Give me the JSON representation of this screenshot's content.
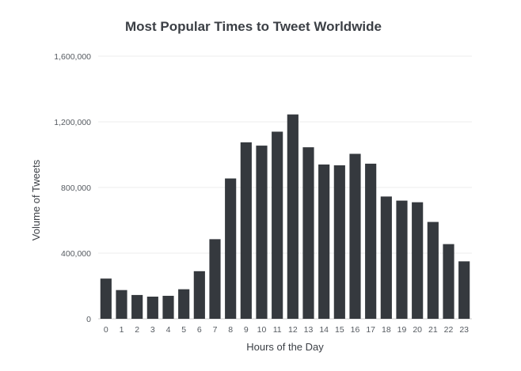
{
  "chart_data": {
    "type": "bar",
    "title": "Most Popular Times to Tweet Worldwide",
    "xlabel": "Hours of the Day",
    "ylabel": "Volume of Tweets",
    "categories": [
      "0",
      "1",
      "2",
      "3",
      "4",
      "5",
      "6",
      "7",
      "8",
      "9",
      "10",
      "11",
      "12",
      "13",
      "14",
      "15",
      "16",
      "17",
      "18",
      "19",
      "20",
      "21",
      "22",
      "23"
    ],
    "values": [
      245000,
      175000,
      145000,
      135000,
      140000,
      180000,
      290000,
      485000,
      855000,
      1075000,
      1055000,
      1140000,
      1245000,
      1045000,
      940000,
      935000,
      1005000,
      945000,
      745000,
      720000,
      710000,
      590000,
      455000,
      350000
    ],
    "ylim": [
      0,
      1600000
    ],
    "yticks": [
      0,
      400000,
      800000,
      1200000,
      1600000
    ],
    "ytick_labels": [
      "0",
      "400,000",
      "800,000",
      "1,200,000",
      "1,600,000"
    ],
    "grid": true,
    "bar_color": "#35393e"
  }
}
